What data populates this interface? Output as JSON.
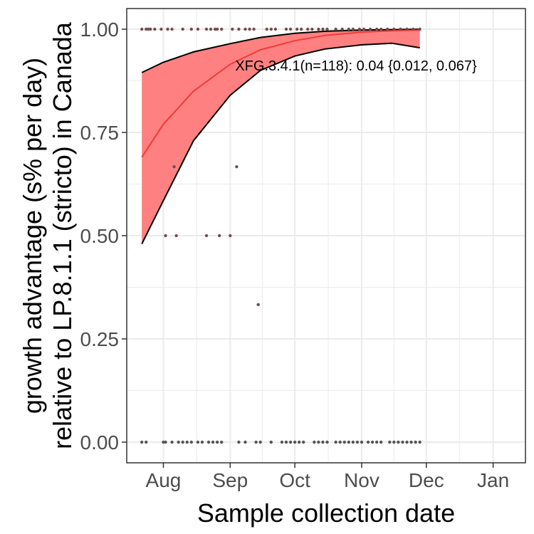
{
  "chart_data": {
    "type": "scatter",
    "title": "",
    "xlabel": "Sample collection date",
    "ylabel_lines": [
      "growth advantage (s% per day)",
      "relative to LP.8.1.1 (stricto) in Canada"
    ],
    "xlim": [
      "2025-07-15",
      "2026-01-16"
    ],
    "ylim": [
      -0.05,
      1.05
    ],
    "x_ticks": [
      {
        "date": "2025-08-01",
        "label": "Aug"
      },
      {
        "date": "2025-09-01",
        "label": "Sep"
      },
      {
        "date": "2025-10-01",
        "label": "Oct"
      },
      {
        "date": "2025-11-01",
        "label": "Nov"
      },
      {
        "date": "2025-12-01",
        "label": "Dec"
      },
      {
        "date": "2026-01-01",
        "label": "Jan"
      }
    ],
    "y_ticks": [
      0.0,
      0.25,
      0.5,
      0.75,
      1.0
    ],
    "y_tick_labels": [
      "0.00",
      "0.25",
      "0.50",
      "0.75",
      "1.00"
    ],
    "grid": true,
    "annotation": "XFG.3.4.1(n=118): 0.04 {0.012, 0.067}",
    "colors": {
      "ribbon": "#ff8080",
      "fit_line": "#ee3b3b",
      "ci_line": "#000000",
      "points": "#555555",
      "point_outline": "#8b4a4a",
      "grid": "#ebebeb",
      "panel_border": "#333333"
    },
    "fit": {
      "x": [
        "2025-07-22",
        "2025-08-01",
        "2025-08-15",
        "2025-09-01",
        "2025-09-15",
        "2025-10-01",
        "2025-10-15",
        "2025-11-01",
        "2025-11-15",
        "2025-11-28"
      ],
      "y": [
        0.69,
        0.77,
        0.85,
        0.915,
        0.95,
        0.972,
        0.985,
        0.993,
        0.996,
        0.998
      ],
      "lower": [
        0.48,
        0.585,
        0.73,
        0.84,
        0.9,
        0.935,
        0.952,
        0.962,
        0.966,
        0.955
      ],
      "upper": [
        0.895,
        0.92,
        0.945,
        0.965,
        0.98,
        0.99,
        0.995,
        0.998,
        0.999,
        1.0
      ]
    },
    "points": [
      {
        "x": "2025-07-22",
        "y": 1.0
      },
      {
        "x": "2025-07-24",
        "y": 1.0
      },
      {
        "x": "2025-07-25",
        "y": 1.0
      },
      {
        "x": "2025-07-26",
        "y": 1.0
      },
      {
        "x": "2025-07-28",
        "y": 1.0
      },
      {
        "x": "2025-07-31",
        "y": 1.0
      },
      {
        "x": "2025-08-03",
        "y": 1.0
      },
      {
        "x": "2025-08-05",
        "y": 1.0
      },
      {
        "x": "2025-08-10",
        "y": 1.0
      },
      {
        "x": "2025-08-14",
        "y": 1.0
      },
      {
        "x": "2025-08-17",
        "y": 1.0
      },
      {
        "x": "2025-08-21",
        "y": 1.0
      },
      {
        "x": "2025-08-23",
        "y": 1.0
      },
      {
        "x": "2025-08-25",
        "y": 1.0
      },
      {
        "x": "2025-08-26",
        "y": 1.0
      },
      {
        "x": "2025-08-28",
        "y": 1.0
      },
      {
        "x": "2025-09-02",
        "y": 1.0
      },
      {
        "x": "2025-09-05",
        "y": 1.0
      },
      {
        "x": "2025-09-08",
        "y": 1.0
      },
      {
        "x": "2025-09-10",
        "y": 1.0
      },
      {
        "x": "2025-09-12",
        "y": 1.0
      },
      {
        "x": "2025-09-18",
        "y": 1.0
      },
      {
        "x": "2025-09-20",
        "y": 1.0
      },
      {
        "x": "2025-09-22",
        "y": 1.0
      },
      {
        "x": "2025-09-27",
        "y": 1.0
      },
      {
        "x": "2025-09-29",
        "y": 1.0
      },
      {
        "x": "2025-10-02",
        "y": 1.0
      },
      {
        "x": "2025-10-04",
        "y": 1.0
      },
      {
        "x": "2025-10-07",
        "y": 1.0
      },
      {
        "x": "2025-10-09",
        "y": 1.0
      },
      {
        "x": "2025-10-12",
        "y": 1.0
      },
      {
        "x": "2025-10-14",
        "y": 1.0
      },
      {
        "x": "2025-10-16",
        "y": 1.0
      },
      {
        "x": "2025-10-20",
        "y": 1.0
      },
      {
        "x": "2025-10-23",
        "y": 1.0
      },
      {
        "x": "2025-10-26",
        "y": 1.0
      },
      {
        "x": "2025-10-28",
        "y": 1.0
      },
      {
        "x": "2025-10-31",
        "y": 1.0
      },
      {
        "x": "2025-11-02",
        "y": 1.0
      },
      {
        "x": "2025-11-05",
        "y": 1.0
      },
      {
        "x": "2025-11-08",
        "y": 1.0
      },
      {
        "x": "2025-11-10",
        "y": 1.0
      },
      {
        "x": "2025-11-13",
        "y": 1.0
      },
      {
        "x": "2025-11-16",
        "y": 1.0
      },
      {
        "x": "2025-11-19",
        "y": 1.0
      },
      {
        "x": "2025-11-22",
        "y": 1.0
      },
      {
        "x": "2025-11-25",
        "y": 1.0
      },
      {
        "x": "2025-11-28",
        "y": 1.0
      },
      {
        "x": "2025-08-06",
        "y": 0.667
      },
      {
        "x": "2025-09-04",
        "y": 0.667
      },
      {
        "x": "2025-08-02",
        "y": 0.5
      },
      {
        "x": "2025-08-07",
        "y": 0.5
      },
      {
        "x": "2025-08-21",
        "y": 0.5
      },
      {
        "x": "2025-08-27",
        "y": 0.5
      },
      {
        "x": "2025-09-01",
        "y": 0.5
      },
      {
        "x": "2025-09-14",
        "y": 0.333
      },
      {
        "x": "2025-07-22",
        "y": 0.0
      },
      {
        "x": "2025-07-24",
        "y": 0.0
      },
      {
        "x": "2025-08-01",
        "y": 0.0
      },
      {
        "x": "2025-08-02",
        "y": 0.0
      },
      {
        "x": "2025-08-05",
        "y": 0.0
      },
      {
        "x": "2025-08-08",
        "y": 0.0
      },
      {
        "x": "2025-08-10",
        "y": 0.0
      },
      {
        "x": "2025-08-12",
        "y": 0.0
      },
      {
        "x": "2025-08-14",
        "y": 0.0
      },
      {
        "x": "2025-08-17",
        "y": 0.0
      },
      {
        "x": "2025-08-19",
        "y": 0.0
      },
      {
        "x": "2025-08-22",
        "y": 0.0
      },
      {
        "x": "2025-08-24",
        "y": 0.0
      },
      {
        "x": "2025-08-26",
        "y": 0.0
      },
      {
        "x": "2025-08-28",
        "y": 0.0
      },
      {
        "x": "2025-09-05",
        "y": 0.0
      },
      {
        "x": "2025-09-08",
        "y": 0.0
      },
      {
        "x": "2025-09-13",
        "y": 0.0
      },
      {
        "x": "2025-09-15",
        "y": 0.0
      },
      {
        "x": "2025-09-20",
        "y": 0.0
      },
      {
        "x": "2025-09-25",
        "y": 0.0
      },
      {
        "x": "2025-09-27",
        "y": 0.0
      },
      {
        "x": "2025-09-29",
        "y": 0.0
      },
      {
        "x": "2025-10-01",
        "y": 0.0
      },
      {
        "x": "2025-10-03",
        "y": 0.0
      },
      {
        "x": "2025-10-05",
        "y": 0.0
      },
      {
        "x": "2025-10-10",
        "y": 0.0
      },
      {
        "x": "2025-10-12",
        "y": 0.0
      },
      {
        "x": "2025-10-14",
        "y": 0.0
      },
      {
        "x": "2025-10-16",
        "y": 0.0
      },
      {
        "x": "2025-10-20",
        "y": 0.0
      },
      {
        "x": "2025-10-22",
        "y": 0.0
      },
      {
        "x": "2025-10-24",
        "y": 0.0
      },
      {
        "x": "2025-10-26",
        "y": 0.0
      },
      {
        "x": "2025-10-28",
        "y": 0.0
      },
      {
        "x": "2025-10-30",
        "y": 0.0
      },
      {
        "x": "2025-11-01",
        "y": 0.0
      },
      {
        "x": "2025-11-04",
        "y": 0.0
      },
      {
        "x": "2025-11-06",
        "y": 0.0
      },
      {
        "x": "2025-11-08",
        "y": 0.0
      },
      {
        "x": "2025-11-10",
        "y": 0.0
      },
      {
        "x": "2025-11-14",
        "y": 0.0
      },
      {
        "x": "2025-11-16",
        "y": 0.0
      },
      {
        "x": "2025-11-18",
        "y": 0.0
      },
      {
        "x": "2025-11-20",
        "y": 0.0
      },
      {
        "x": "2025-11-22",
        "y": 0.0
      },
      {
        "x": "2025-11-24",
        "y": 0.0
      },
      {
        "x": "2025-11-26",
        "y": 0.0
      },
      {
        "x": "2025-11-28",
        "y": 0.0
      }
    ]
  }
}
